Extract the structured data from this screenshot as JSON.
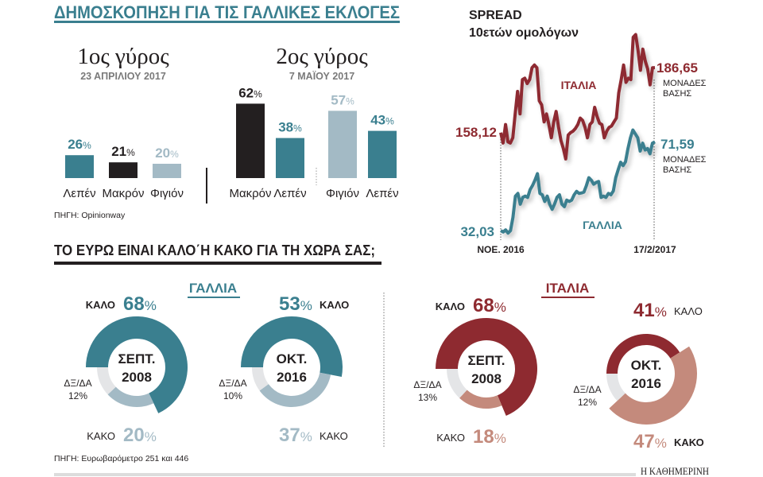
{
  "colors": {
    "teal": "#3a7f8f",
    "black": "#231f20",
    "light_blue": "#a3bac5",
    "dark_red": "#8e2a30",
    "salmon": "#c48a7c",
    "grey": "#e4e5e7"
  },
  "percent_sign": "%",
  "chart_data": [
    {
      "type": "bar",
      "title": "ΔΗΜΟΣΚΟΠΗΣΗ ΓΙΑ ΤΙΣ ΓΑΛΛΙΚΕΣ ΕΚΛΟΓΕΣ",
      "source": "ΠΗΓΗ: Opinionway",
      "rounds": [
        {
          "title": "1ος γύρος",
          "date": "23 ΑΠΡΙΛΙΟΥ 2017",
          "categories": [
            "Λεπέν",
            "Μακρόν",
            "Φιγιόν"
          ],
          "values": [
            26,
            21,
            20
          ],
          "colors": [
            "#3a7f8f",
            "#231f20",
            "#a3bac5"
          ]
        },
        {
          "title": "2ος γύρος",
          "date": "7 ΜΑΪΟΥ 2017",
          "categories": [
            "Μακρόν",
            "Λεπέν",
            "Φιγιόν",
            "Λεπέν"
          ],
          "values": [
            62,
            38,
            57,
            43
          ],
          "colors": [
            "#231f20",
            "#3a7f8f",
            "#a3bac5",
            "#3a7f8f"
          ]
        }
      ]
    },
    {
      "type": "line",
      "title": "SPREAD",
      "subtitle": "10ετών ομολόγων",
      "x_labels": [
        "ΝΟΕ. 2016",
        "17/2/2017"
      ],
      "series": [
        {
          "name": "ΙΤΑΛΙΑ",
          "color": "#8e2a30",
          "start_label": "158,12",
          "end_label": "186,65",
          "unit_line1": "ΜΟΝΑΔΕΣ",
          "unit_line2": "ΒΑΣΗΣ",
          "values": [
            158.1,
            153.5,
            161.6,
            154.0,
            153.5,
            155.8,
            166.3,
            176.2,
            166.3,
            181.4,
            182.0,
            179.7,
            181.4,
            186.6,
            187.8,
            186.6,
            172.1,
            170.3,
            162.8,
            166.3,
            161.6,
            155.8,
            162.8,
            167.4,
            160.4,
            154.6,
            151.1,
            146.5,
            157.0,
            158.1,
            158.7,
            159.9,
            161.6,
            164.5,
            163.4,
            160.4,
            155.8,
            161.6,
            162.8,
            169.2,
            165.1,
            162.2,
            161.6,
            155.8,
            158.7,
            160.4,
            161.0,
            162.8,
            164.5,
            175.6,
            181.4,
            187.8,
            180.2,
            182.0,
            181.4,
            200.0,
            201.2,
            194.2,
            185.5,
            194.8,
            189.5,
            186.1,
            179.1,
            186.6,
            186.65
          ]
        },
        {
          "name": "ΓΑΛΛΙΑ",
          "color": "#3a7f8f",
          "start_label": "32,03",
          "end_label": "71,59",
          "unit_line1": "ΜΟΝΑΔΕΣ",
          "unit_line2": "ΒΑΣΗΣ",
          "values": [
            32.0,
            31.4,
            32.3,
            30.9,
            32.0,
            37.9,
            47.4,
            48.6,
            43.8,
            46.8,
            47.4,
            46.8,
            50.3,
            52.1,
            54.5,
            57.4,
            48.6,
            48.0,
            45.0,
            47.4,
            43.8,
            41.5,
            43.8,
            46.8,
            48.0,
            43.8,
            42.7,
            45.6,
            45.0,
            45.6,
            48.0,
            49.5,
            48.6,
            48.8,
            49.2,
            52.1,
            55.6,
            54.5,
            52.7,
            53.5,
            53.9,
            46.8,
            47.4,
            46.8,
            48.6,
            48.0,
            49.7,
            55.6,
            59.2,
            62.5,
            61.0,
            62.7,
            68.6,
            73.4,
            76.9,
            75.1,
            73.4,
            67.5,
            71.0,
            68.0,
            68.6,
            66.3,
            71.0,
            71.59
          ]
        }
      ]
    },
    {
      "type": "pie",
      "title": "ΤΟ ΕΥΡΩ ΕΙΝΑΙ ΚΑΛΟ΄Η ΚΑΚΟ ΓΙΑ ΤΗ ΧΩΡΑ ΣΑΣ;",
      "source": "ΠΗΓΗ: Ευρωβαρόμετρο 251 και 446",
      "countries": [
        {
          "name": "ΓΑΛΛΙΑ",
          "color": "#3a7f8f",
          "light_color": "#a3bac5",
          "charts": [
            {
              "period_line1": "ΣΕΠΤ.",
              "period_line2": "2008",
              "slices": [
                {
                  "label": "ΚΑΛΟ",
                  "value": 68
                },
                {
                  "label": "ΚΑΚΟ",
                  "value": 20
                },
                {
                  "label": "ΔΞ/ΔΑ",
                  "value": 12
                }
              ]
            },
            {
              "period_line1": "ΟΚΤ.",
              "period_line2": "2016",
              "slices": [
                {
                  "label": "ΚΑΛΟ",
                  "value": 53
                },
                {
                  "label": "ΚΑΚΟ",
                  "value": 37
                },
                {
                  "label": "ΔΞ/ΔΑ",
                  "value": 10
                }
              ]
            }
          ]
        },
        {
          "name": "ΙΤΑΛΙΑ",
          "color": "#8e2a30",
          "light_color": "#c48a7c",
          "charts": [
            {
              "period_line1": "ΣΕΠΤ.",
              "period_line2": "2008",
              "slices": [
                {
                  "label": "ΚΑΛΟ",
                  "value": 68
                },
                {
                  "label": "ΚΑΚΟ",
                  "value": 18
                },
                {
                  "label": "ΔΞ/ΔΑ",
                  "value": 13
                }
              ]
            },
            {
              "period_line1": "ΟΚΤ.",
              "period_line2": "2016",
              "slices": [
                {
                  "label": "ΚΑΛΟ",
                  "value": 41
                },
                {
                  "label": "ΚΑΚΟ",
                  "value": 47
                },
                {
                  "label": "ΔΞ/ΔΑ",
                  "value": 12
                }
              ]
            }
          ]
        }
      ]
    }
  ],
  "footer": {
    "brand": "Η ΚΑΘΗΜΕΡΙΝΗ"
  }
}
